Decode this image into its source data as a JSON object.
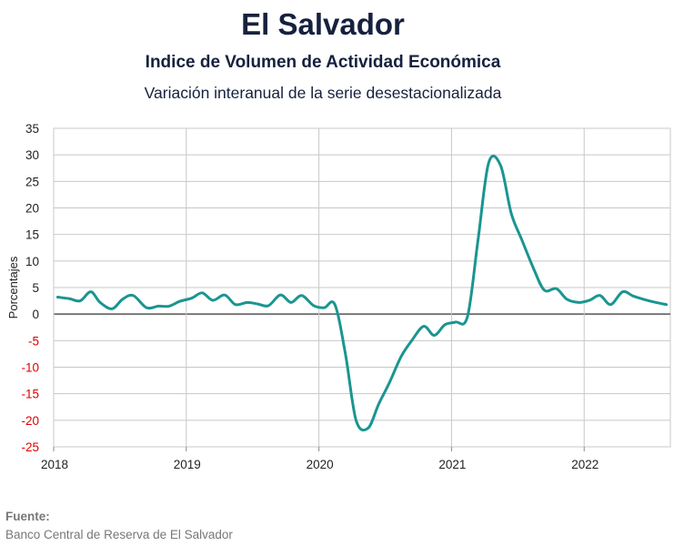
{
  "header": {
    "title": "El Salvador",
    "subtitle": "Indice de Volumen de  Actividad Económica",
    "subtitle2": "Variación interanual de la serie desestacionalizada"
  },
  "footer": {
    "source_label": "Fuente:",
    "source_text": "Banco Central de Reserva de El Salvador"
  },
  "chart_data": {
    "type": "line",
    "title": "El Salvador",
    "xlabel": "",
    "ylabel": "Porcentajes",
    "xlim": [
      2018.0,
      2022.65
    ],
    "ylim": [
      -25,
      35
    ],
    "yticks": [
      35,
      30,
      25,
      20,
      15,
      10,
      5,
      0,
      -5,
      -10,
      -15,
      -20,
      -25
    ],
    "xticks": [
      2018,
      2019,
      2020,
      2021,
      2022
    ],
    "xtick_labels": [
      "2018",
      "2019",
      "2020",
      "2021",
      "2022"
    ],
    "grid": true,
    "colors": {
      "line": "#1a9591",
      "negative_tick": "#e00000",
      "positive_tick": "#222222",
      "zero_line": "#555555",
      "grid": "#c8c8c8"
    },
    "series": [
      {
        "name": "",
        "x": [
          2018.03,
          2018.12,
          2018.2,
          2018.28,
          2018.35,
          2018.44,
          2018.52,
          2018.6,
          2018.7,
          2018.79,
          2018.87,
          2018.95,
          2019.04,
          2019.12,
          2019.2,
          2019.29,
          2019.37,
          2019.46,
          2019.54,
          2019.62,
          2019.71,
          2019.79,
          2019.87,
          2019.96,
          2020.04,
          2020.12,
          2020.2,
          2020.28,
          2020.37,
          2020.45,
          2020.53,
          2020.62,
          2020.7,
          2020.79,
          2020.87,
          2020.95,
          2021.03,
          2021.12,
          2021.2,
          2021.28,
          2021.37,
          2021.45,
          2021.53,
          2021.62,
          2021.7,
          2021.79,
          2021.87,
          2021.96,
          2022.04,
          2022.12,
          2022.2,
          2022.29,
          2022.37,
          2022.46,
          2022.54,
          2022.62
        ],
        "y": [
          3.2,
          2.9,
          2.5,
          4.2,
          2.2,
          1.0,
          2.8,
          3.5,
          1.2,
          1.5,
          1.5,
          2.4,
          3.0,
          4.0,
          2.6,
          3.6,
          1.8,
          2.2,
          1.9,
          1.6,
          3.6,
          2.2,
          3.5,
          1.6,
          1.2,
          1.8,
          -7.5,
          -20.0,
          -21.5,
          -17.0,
          -13.0,
          -8.0,
          -5.0,
          -2.3,
          -4.0,
          -2.0,
          -1.5,
          -0.5,
          14.0,
          28.5,
          28.0,
          19.0,
          14.0,
          8.5,
          4.5,
          4.8,
          2.8,
          2.2,
          2.6,
          3.5,
          1.8,
          4.2,
          3.4,
          2.7,
          2.2,
          1.8
        ]
      }
    ]
  }
}
